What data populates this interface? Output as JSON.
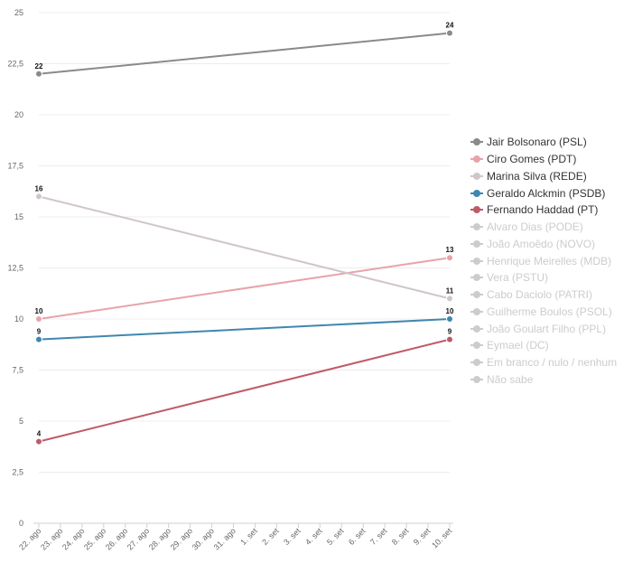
{
  "chart_data": {
    "type": "line",
    "title": "",
    "xlabel": "",
    "ylabel": "",
    "x": [
      "22. ago",
      "23. ago",
      "24. ago",
      "25. ago",
      "26. ago",
      "27. ago",
      "28. ago",
      "29. ago",
      "30. ago",
      "31. ago",
      "1. set",
      "2. set",
      "3. set",
      "4. set",
      "5. set",
      "6. set",
      "7. set",
      "8. set",
      "9. set",
      "10. set"
    ],
    "ylim": [
      0,
      25
    ],
    "yticks": [
      "0",
      "2,5",
      "5",
      "7,5",
      "10",
      "12,5",
      "15",
      "17,5",
      "20",
      "22,5",
      "25"
    ],
    "grid": true,
    "legend_position": "right",
    "series": [
      {
        "name": "Jair Bolsonaro (PSL)",
        "color": "#8a8a8a",
        "active": true,
        "points": [
          {
            "x": "22. ago",
            "y": 22
          },
          {
            "x": "10. set",
            "y": 24
          }
        ]
      },
      {
        "name": "Ciro Gomes (PDT)",
        "color": "#e8a3a9",
        "active": true,
        "points": [
          {
            "x": "22. ago",
            "y": 10
          },
          {
            "x": "10. set",
            "y": 13
          }
        ]
      },
      {
        "name": "Marina Silva (REDE)",
        "color": "#cfc6cb",
        "active": true,
        "points": [
          {
            "x": "22. ago",
            "y": 16
          },
          {
            "x": "10. set",
            "y": 11
          }
        ]
      },
      {
        "name": "Geraldo Alckmin (PSDB)",
        "color": "#3f87b0",
        "active": true,
        "points": [
          {
            "x": "22. ago",
            "y": 9
          },
          {
            "x": "10. set",
            "y": 10
          }
        ]
      },
      {
        "name": "Fernando Haddad (PT)",
        "color": "#bf5a68",
        "active": true,
        "points": [
          {
            "x": "22. ago",
            "y": 4
          },
          {
            "x": "10. set",
            "y": 9
          }
        ]
      },
      {
        "name": "Alvaro Dias (PODE)",
        "color": "#cccccc",
        "active": false,
        "points": []
      },
      {
        "name": "João Amoêdo (NOVO)",
        "color": "#cccccc",
        "active": false,
        "points": []
      },
      {
        "name": "Henrique Meirelles (MDB)",
        "color": "#cccccc",
        "active": false,
        "points": []
      },
      {
        "name": "Vera (PSTU)",
        "color": "#cccccc",
        "active": false,
        "points": []
      },
      {
        "name": "Cabo Daciolo (PATRI)",
        "color": "#cccccc",
        "active": false,
        "points": []
      },
      {
        "name": "Guilherme Boulos (PSOL)",
        "color": "#cccccc",
        "active": false,
        "points": []
      },
      {
        "name": "João Goulart Filho (PPL)",
        "color": "#cccccc",
        "active": false,
        "points": []
      },
      {
        "name": "Eymael (DC)",
        "color": "#cccccc",
        "active": false,
        "points": []
      },
      {
        "name": "Em branco / nulo / nenhum",
        "color": "#cccccc",
        "active": false,
        "points": []
      },
      {
        "name": "Não sabe",
        "color": "#cccccc",
        "active": false,
        "points": []
      }
    ]
  }
}
